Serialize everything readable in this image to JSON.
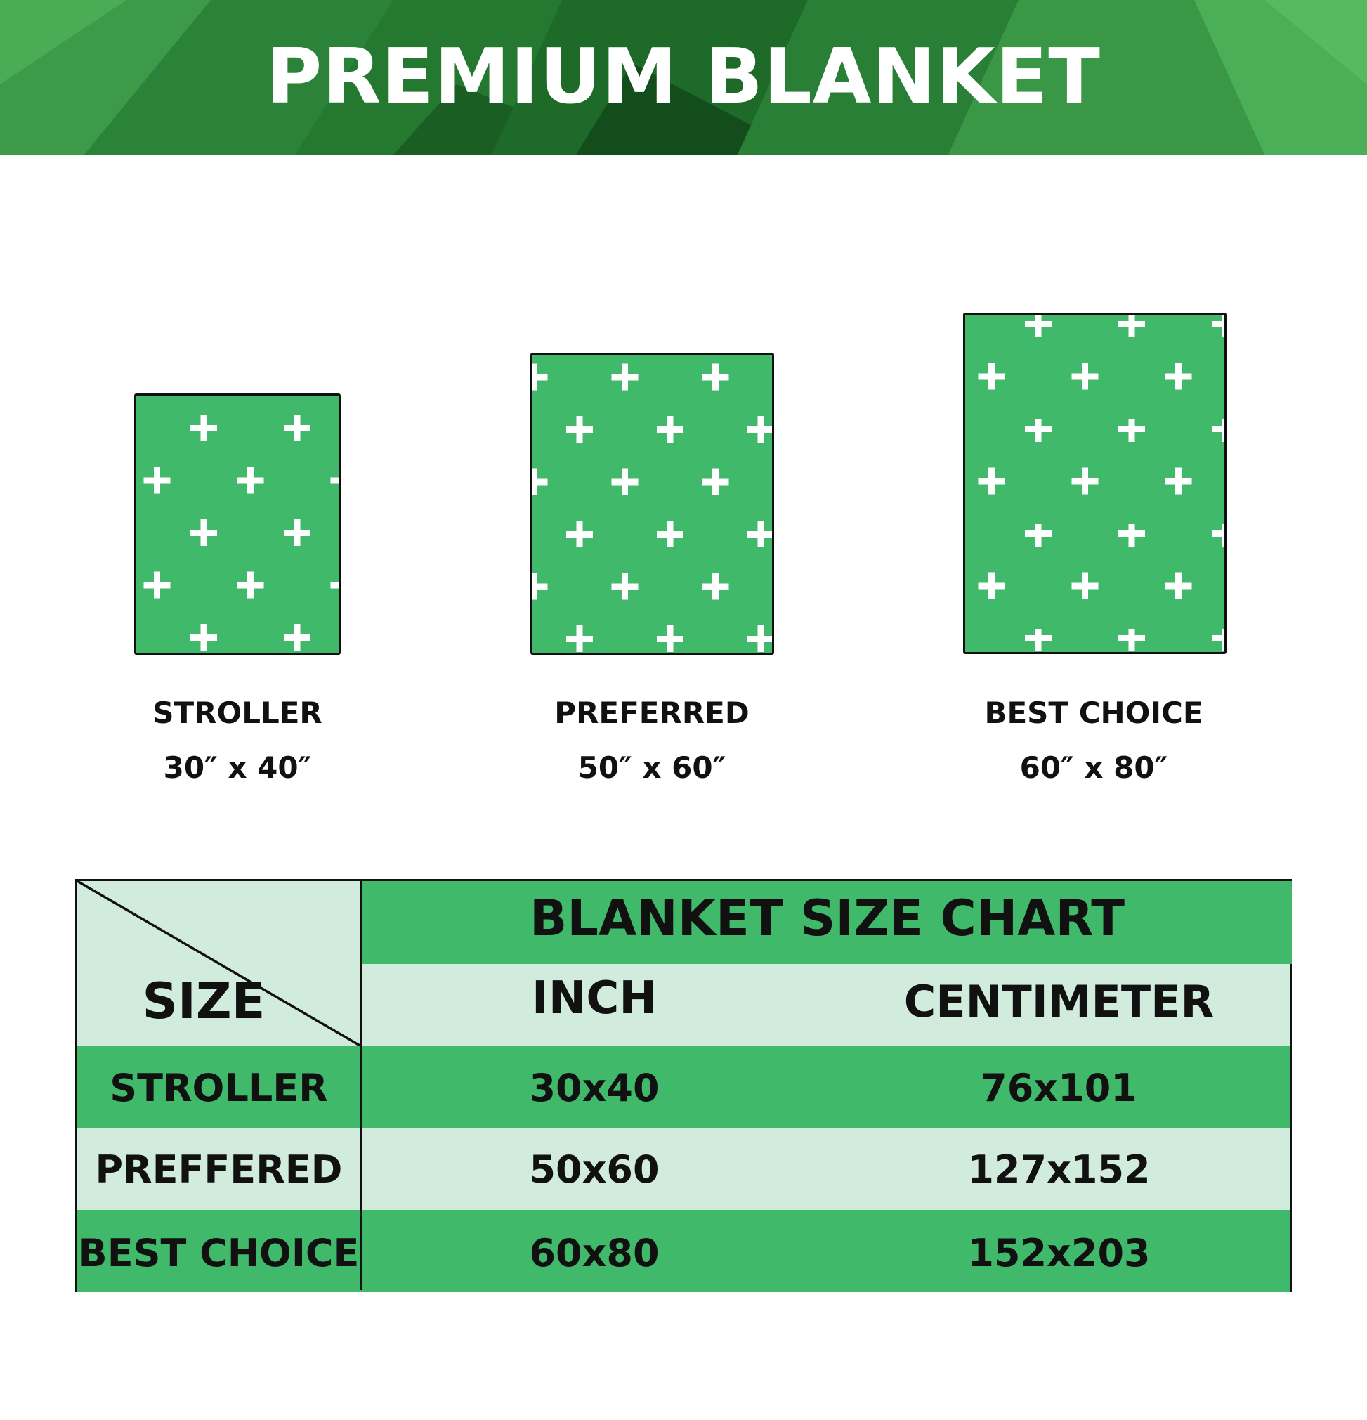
{
  "header": {
    "title": "PREMIUM BLANKET"
  },
  "colors": {
    "green": "#41b96a",
    "light_green": "#d1ecdc",
    "header_dark": "#1f6e2c",
    "pattern_icon": "plus-icon",
    "pattern_color": "#ffffff"
  },
  "blankets": [
    {
      "name": "STROLLER",
      "size": "30″ x 40″"
    },
    {
      "name": "PREFERRED",
      "size": "50″ x 60″"
    },
    {
      "name": "BEST CHOICE",
      "size": "60″ x 80″"
    }
  ],
  "table": {
    "title": "BLANKET SIZE CHART",
    "corner_label": "SIZE",
    "columns": [
      "INCH",
      "CENTIMETER"
    ],
    "rows": [
      {
        "label": "STROLLER",
        "inch": "30x40",
        "cm": "76x101"
      },
      {
        "label": "PREFFERED",
        "inch": "50x60",
        "cm": "127x152"
      },
      {
        "label": "BEST CHOICE",
        "inch": "60x80",
        "cm": "152x203"
      }
    ]
  }
}
